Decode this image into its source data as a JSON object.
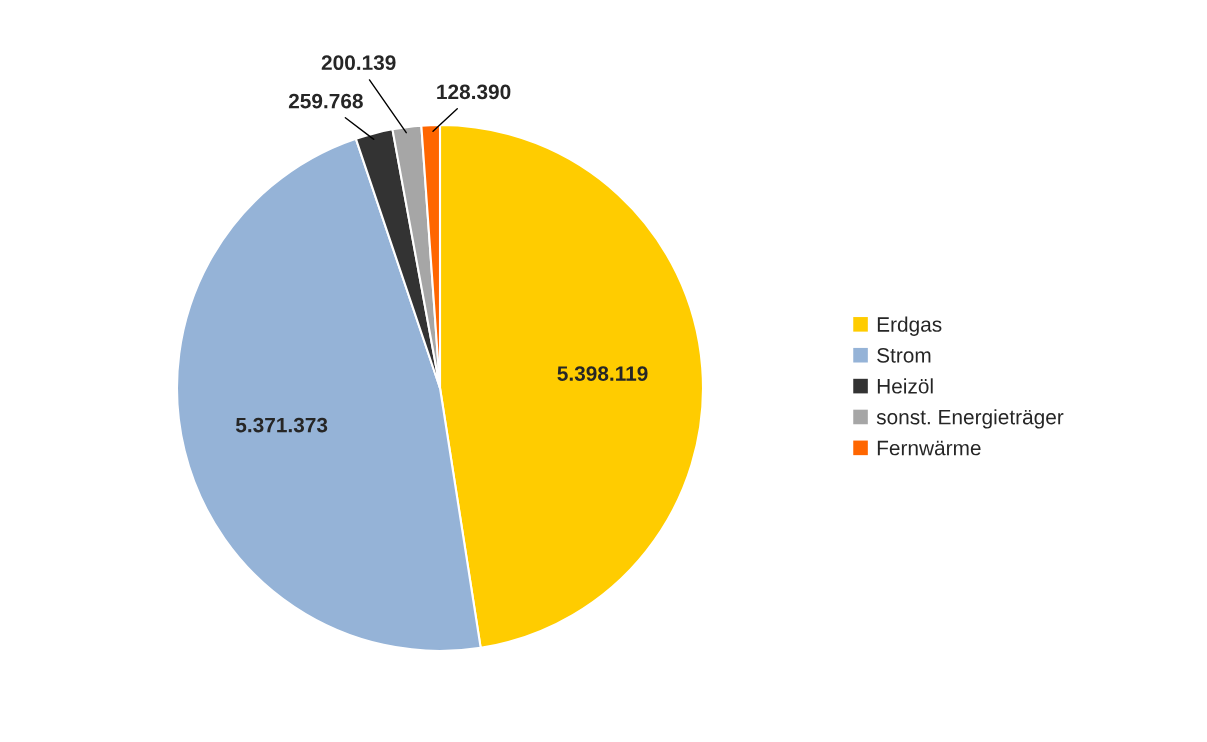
{
  "chart_data": {
    "type": "pie",
    "categories": [
      "Erdgas",
      "Strom",
      "Heizöl",
      "sonst. Energieträger",
      "Fernwärme"
    ],
    "values": [
      5398119,
      5371373,
      259768,
      200139,
      128390
    ],
    "value_labels": [
      "5.398.119",
      "5.371.373",
      "259.768",
      "200.139",
      "128.390"
    ],
    "colors": [
      "#ffcc00",
      "#95b3d7",
      "#333333",
      "#a6a6a6",
      "#ff6600"
    ],
    "legend": "right"
  }
}
